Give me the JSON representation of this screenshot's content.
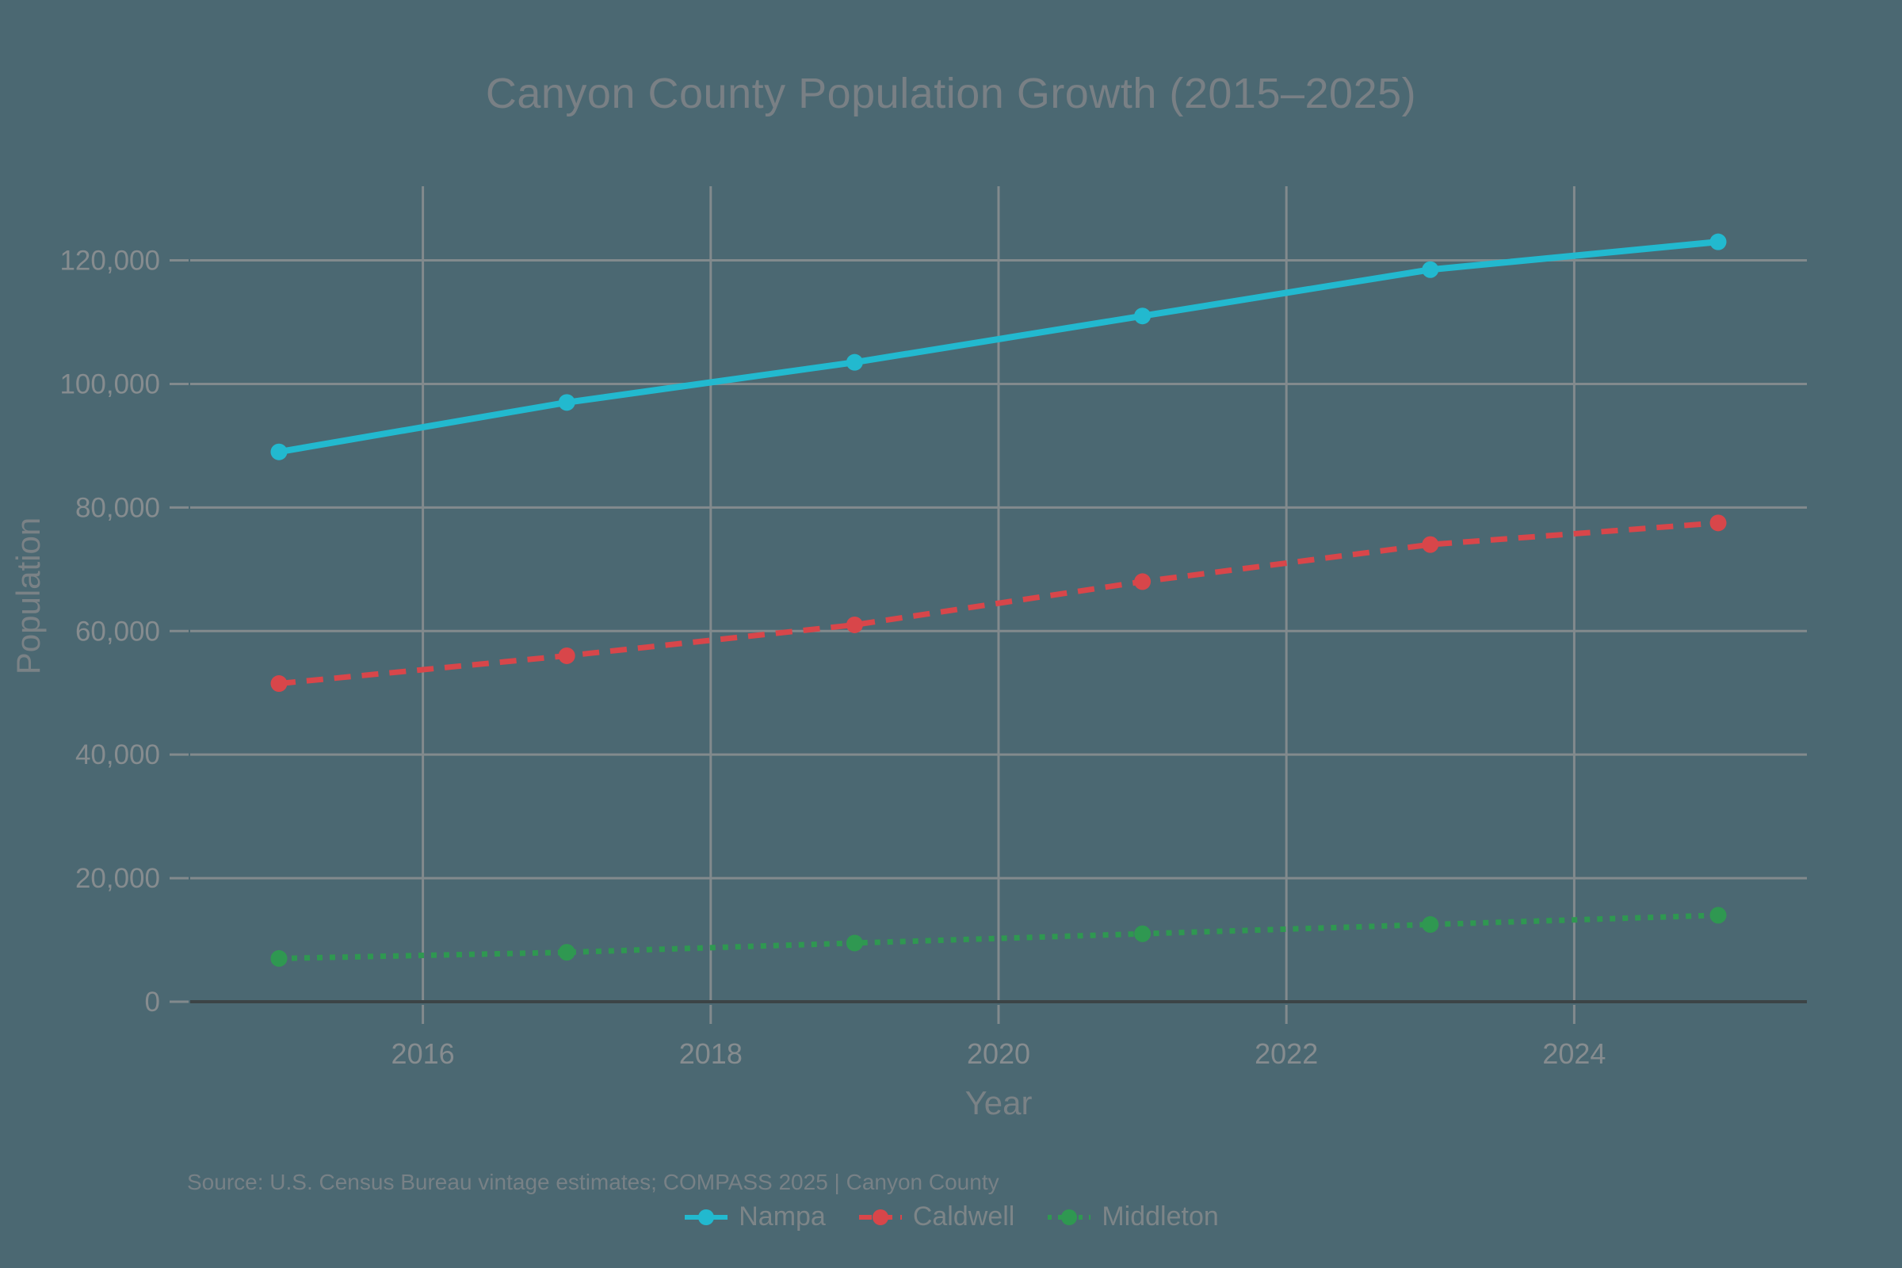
{
  "title": "Canyon County Population Growth (2015–2025)",
  "source_note": "Source: U.S. Census Bureau vintage estimates; COMPASS 2025 | Canyon County",
  "colors": {
    "background": "#4b6872",
    "grid": "#828a8d",
    "axis_line": "#3c4446",
    "title_text": "#798085",
    "axis_title_text": "#7a8286",
    "tick_text": "#868c8f",
    "source_text": "#788186",
    "legend_text": "#7d8588",
    "nampa": "#22b9cf",
    "caldwell": "#d8464a",
    "middleton": "#2f9851"
  },
  "chart_data": {
    "type": "line",
    "title": "Canyon County Population Growth (2015–2025)",
    "xlabel": "Year",
    "ylabel": "Population",
    "x": [
      2015,
      2017,
      2019,
      2021,
      2023,
      2025
    ],
    "series": [
      {
        "name": "Nampa",
        "color": "#22b9cf",
        "style": "solid",
        "values": [
          89000,
          97000,
          103500,
          111000,
          118500,
          123000
        ]
      },
      {
        "name": "Caldwell",
        "color": "#d8464a",
        "style": "dashed",
        "values": [
          51500,
          56000,
          61000,
          68000,
          74000,
          77500
        ]
      },
      {
        "name": "Middleton",
        "color": "#2f9851",
        "style": "dotted",
        "values": [
          7000,
          8000,
          9500,
          11000,
          12500,
          14000
        ]
      }
    ],
    "x_ticks": [
      2016,
      2018,
      2020,
      2022,
      2024
    ],
    "y_ticks": [
      0,
      20000,
      40000,
      60000,
      80000,
      100000,
      120000
    ],
    "xlim": [
      2014.3833,
      2025.6167
    ],
    "ylim": [
      0,
      132000
    ],
    "grid": true,
    "legend_position": "bottom"
  }
}
